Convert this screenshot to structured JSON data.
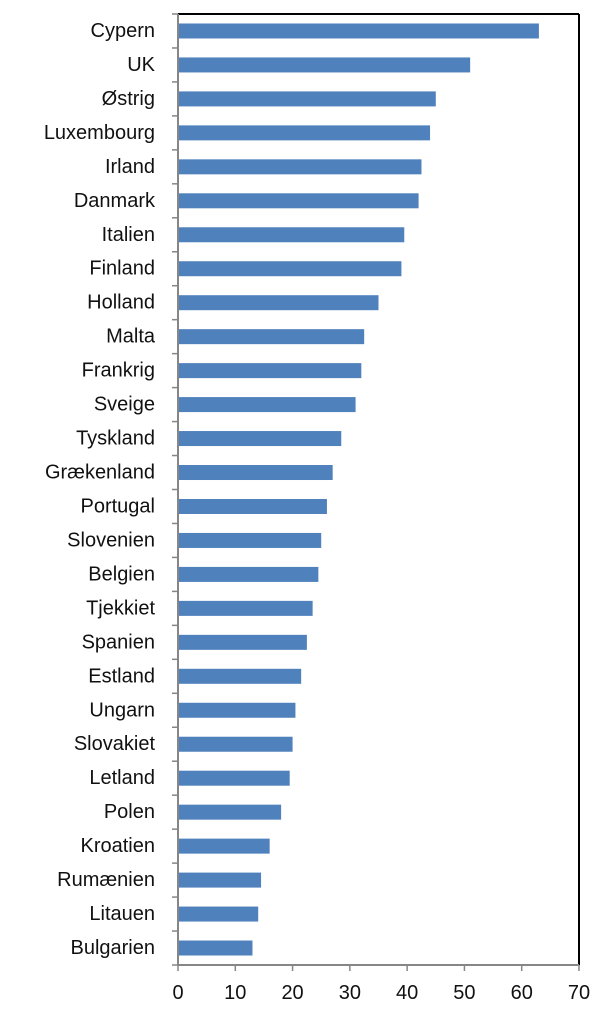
{
  "chart_data": {
    "type": "bar",
    "orientation": "horizontal",
    "categories": [
      "Cypern",
      "UK",
      "Østrig",
      "Luxembourg",
      "Irland",
      "Danmark",
      "Italien",
      "Finland",
      "Holland",
      "Malta",
      "Frankrig",
      "Sveige",
      "Tyskland",
      "Grækenland",
      "Portugal",
      "Slovenien",
      "Belgien",
      "Tjekkiet",
      "Spanien",
      "Estland",
      "Ungarn",
      "Slovakiet",
      "Letland",
      "Polen",
      "Kroatien",
      "Rumænien",
      "Litauen",
      "Bulgarien"
    ],
    "values": [
      63,
      51,
      45,
      44,
      42.5,
      42,
      39.5,
      39,
      35,
      32.5,
      32,
      31,
      28.5,
      27,
      26,
      25,
      24.5,
      23.5,
      22.5,
      21.5,
      20.5,
      20,
      19.5,
      18,
      16,
      14.5,
      14,
      13
    ],
    "xlim": [
      0,
      70
    ],
    "xticks": [
      "0",
      "10",
      "20",
      "30",
      "40",
      "50",
      "60",
      "70"
    ],
    "bar_color": "#4f81bd",
    "grid": false,
    "legend": "none"
  }
}
